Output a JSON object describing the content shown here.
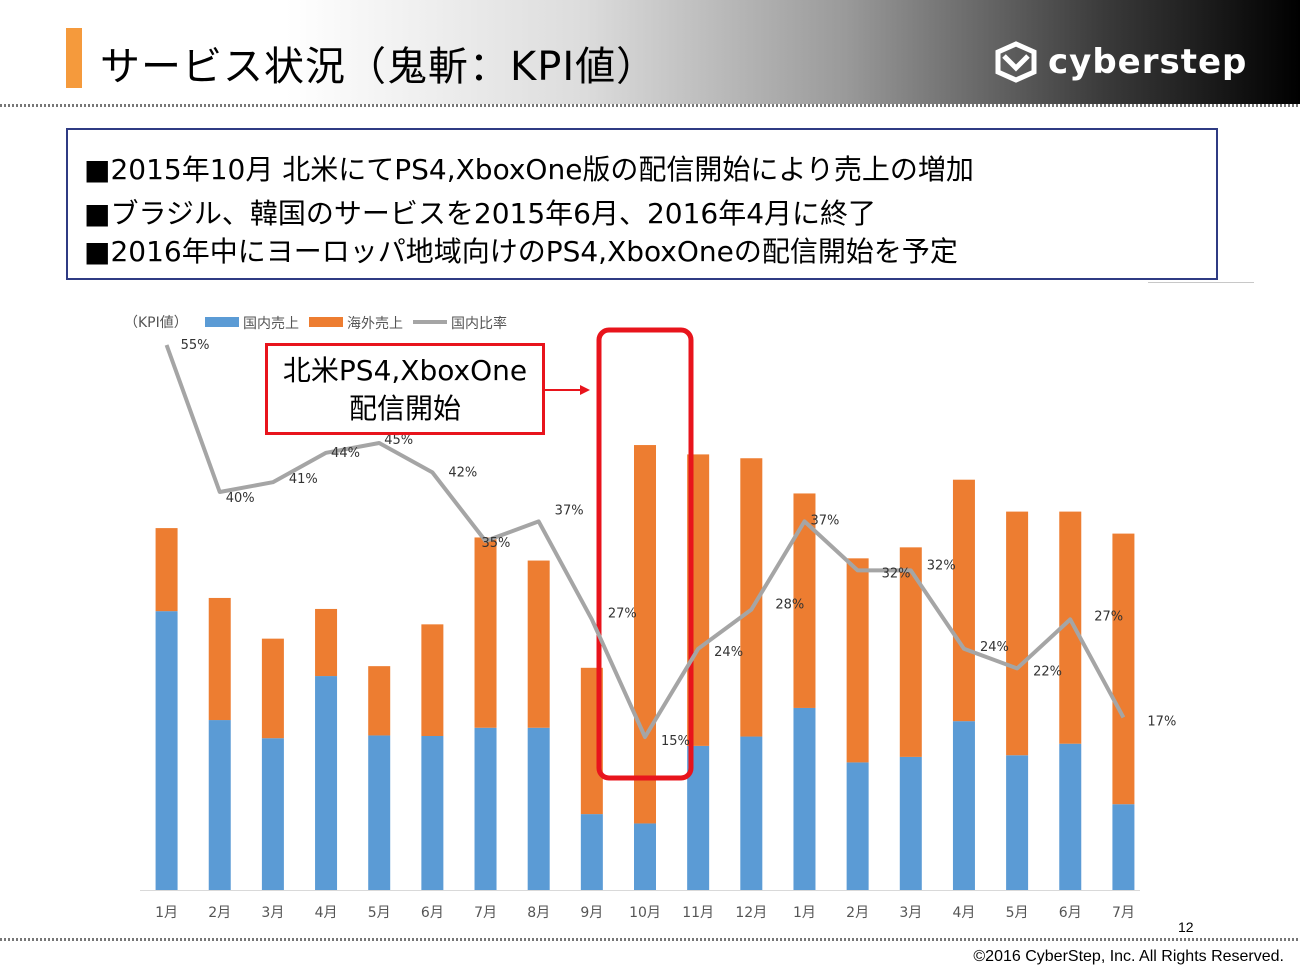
{
  "header": {
    "title": "サービス状況（鬼斬：KPI値）",
    "logo_text": "cyberstep",
    "colors": {
      "accent": "#f59a3c"
    }
  },
  "summary": {
    "lines": [
      "■2015年10月 北米にてPS4,XboxOne版の配信開始により売上の増加",
      "■ブラジル、韓国のサービスを2015年6月、2016年4月に終了",
      "■2016年中にヨーロッパ地域向けのPS4,XboxOneの配信開始を予定"
    ]
  },
  "callout": {
    "lines": [
      "北米PS4,XboxOne",
      "配信開始"
    ],
    "color": "#e8141c"
  },
  "chart_data": {
    "type": "bar",
    "stacked": true,
    "unit_label": "（KPI値）",
    "categories": [
      "1月",
      "2月",
      "3月",
      "4月",
      "5月",
      "6月",
      "7月",
      "8月",
      "9月",
      "10月",
      "11月",
      "12月",
      "1月",
      "2月",
      "3月",
      "4月",
      "5月",
      "6月",
      "7月"
    ],
    "ylim": [
      0,
      100
    ],
    "series": [
      {
        "name": "国内売上",
        "color": "#5b9bd5",
        "values": [
          50.7,
          30.9,
          27.6,
          38.9,
          28.1,
          28.0,
          29.5,
          29.5,
          13.8,
          12.1,
          26.2,
          27.9,
          33.1,
          23.2,
          24.2,
          30.7,
          24.5,
          26.6,
          15.6
        ]
      },
      {
        "name": "海外売上",
        "color": "#ed7d31",
        "values": [
          15.1,
          22.2,
          18.1,
          12.2,
          12.6,
          20.3,
          34.6,
          30.4,
          26.6,
          68.8,
          53.0,
          50.6,
          39.0,
          37.1,
          38.1,
          43.9,
          44.3,
          42.2,
          49.2
        ]
      },
      {
        "name": "国内比率",
        "color": "#a5a5a5",
        "type": "line",
        "values": [
          55,
          40,
          41,
          44,
          45,
          42,
          35,
          37,
          27,
          15,
          24,
          28,
          37,
          32,
          32,
          24,
          22,
          27,
          17
        ],
        "labels": [
          "55%",
          "40%",
          "41%",
          "44%",
          "45%",
          "42%",
          "35%",
          "37%",
          "27%",
          "15%",
          "24%",
          "28%",
          "37%",
          "32%",
          "32%",
          "24%",
          "22%",
          "27%",
          "17%"
        ]
      }
    ],
    "highlight_category_index": 9,
    "highlight_color": "#e8141c",
    "legend_position": "top-left",
    "grid": false
  },
  "footer": {
    "page_number": "12",
    "copyright": "©2016 CyberStep, Inc. All Rights Reserved."
  }
}
